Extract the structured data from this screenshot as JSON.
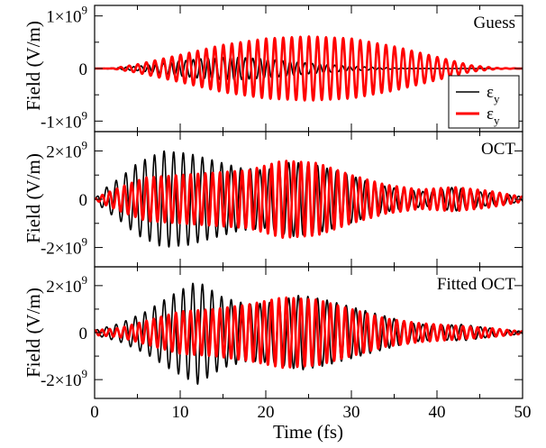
{
  "chart_data": {
    "type": "line",
    "xlabel": "Time (fs)",
    "ylabel": "Field (V/m)",
    "xlim": [
      0,
      50
    ],
    "x_ticks": [
      "0",
      "10",
      "20",
      "30",
      "40",
      "50"
    ],
    "legend": {
      "placement": "right",
      "entries": [
        {
          "label": "ε",
          "sub": "y",
          "color": "#000000"
        },
        {
          "label": "ε",
          "sub": "y",
          "color": "#ff0000"
        }
      ]
    },
    "panels": [
      {
        "title": "Guess",
        "ylim": [
          -1200000000.0,
          1200000000.0
        ],
        "y_ticks": [
          {
            "value": 1000000000.0,
            "mant": "1×10",
            "exp": "9"
          },
          {
            "value": 0,
            "mant": "0",
            "exp": ""
          },
          {
            "value": -1000000000.0,
            "mant": "-1×10",
            "exp": "9"
          }
        ],
        "series": [
          {
            "color": "#000000",
            "carrier_period_fs": 0.87,
            "envelope": [
              [
                0,
                0
              ],
              [
                2,
                10000000.0
              ],
              [
                5,
                40000000.0
              ],
              [
                8,
                100000000.0
              ],
              [
                12,
                180000000.0
              ],
              [
                16,
                220000000.0
              ],
              [
                20,
                180000000.0
              ],
              [
                25,
                100000000.0
              ],
              [
                30,
                40000000.0
              ],
              [
                35,
                10000000.0
              ],
              [
                40,
                0
              ],
              [
                50,
                0
              ]
            ]
          },
          {
            "color": "#ff0000",
            "carrier_period_fs": 1.0,
            "envelope": [
              [
                0,
                0
              ],
              [
                2,
                0
              ],
              [
                5,
                80000000.0
              ],
              [
                10,
                260000000.0
              ],
              [
                15,
                450000000.0
              ],
              [
                20,
                570000000.0
              ],
              [
                25,
                610000000.0
              ],
              [
                30,
                570000000.0
              ],
              [
                35,
                420000000.0
              ],
              [
                40,
                220000000.0
              ],
              [
                44,
                60000000.0
              ],
              [
                47,
                10000000.0
              ],
              [
                50,
                0
              ]
            ]
          }
        ]
      },
      {
        "title": "OCT",
        "ylim": [
          -2800000000.0,
          2800000000.0
        ],
        "y_ticks": [
          {
            "value": 2000000000.0,
            "mant": "2×10",
            "exp": "9"
          },
          {
            "value": 0,
            "mant": "0",
            "exp": ""
          },
          {
            "value": -2000000000.0,
            "mant": "-2×10",
            "exp": "9"
          }
        ],
        "series": [
          {
            "color": "#000000",
            "carrier_period_fs": 1.12,
            "envelope": [
              [
                0,
                0
              ],
              [
                1,
                400000000.0
              ],
              [
                3,
                900000000.0
              ],
              [
                5,
                1500000000.0
              ],
              [
                8,
                2000000000.0
              ],
              [
                11,
                1900000000.0
              ],
              [
                14,
                1600000000.0
              ],
              [
                17,
                1300000000.0
              ],
              [
                20,
                1200000000.0
              ],
              [
                23,
                1550000000.0
              ],
              [
                26,
                1400000000.0
              ],
              [
                29,
                1100000000.0
              ],
              [
                33,
                600000000.0
              ],
              [
                36,
                400000000.0
              ],
              [
                39,
                300000000.0
              ],
              [
                42,
                500000000.0
              ],
              [
                45,
                300000000.0
              ],
              [
                48,
                200000000.0
              ],
              [
                50,
                100000000.0
              ]
            ]
          },
          {
            "color": "#ff0000",
            "carrier_period_fs": 0.86,
            "envelope": [
              [
                0,
                0
              ],
              [
                1,
                200000000.0
              ],
              [
                3,
                500000000.0
              ],
              [
                6,
                900000000.0
              ],
              [
                10,
                1000000000.0
              ],
              [
                14,
                1100000000.0
              ],
              [
                18,
                1200000000.0
              ],
              [
                22,
                1600000000.0
              ],
              [
                26,
                1500000000.0
              ],
              [
                30,
                1000000000.0
              ],
              [
                34,
                600000000.0
              ],
              [
                38,
                400000000.0
              ],
              [
                42,
                500000000.0
              ],
              [
                46,
                350000000.0
              ],
              [
                50,
                100000000.0
              ]
            ]
          }
        ]
      },
      {
        "title": "Fitted OCT",
        "ylim": [
          -2800000000.0,
          2800000000.0
        ],
        "y_ticks": [
          {
            "value": 2000000000.0,
            "mant": "2×10",
            "exp": "9"
          },
          {
            "value": 0,
            "mant": "0",
            "exp": ""
          },
          {
            "value": -2000000000.0,
            "mant": "-2×10",
            "exp": "9"
          }
        ],
        "series": [
          {
            "color": "#000000",
            "carrier_period_fs": 1.12,
            "envelope": [
              [
                0,
                100000000.0
              ],
              [
                3,
                400000000.0
              ],
              [
                6,
                900000000.0
              ],
              [
                9,
                1600000000.0
              ],
              [
                12,
                2200000000.0
              ],
              [
                15,
                1500000000.0
              ],
              [
                18,
                1200000000.0
              ],
              [
                21,
                1300000000.0
              ],
              [
                24,
                1600000000.0
              ],
              [
                27,
                1400000000.0
              ],
              [
                30,
                1100000000.0
              ],
              [
                34,
                700000000.0
              ],
              [
                37,
                400000000.0
              ],
              [
                40,
                300000000.0
              ],
              [
                43,
                350000000.0
              ],
              [
                46,
                200000000.0
              ],
              [
                50,
                50000000.0
              ]
            ]
          },
          {
            "color": "#ff0000",
            "carrier_period_fs": 0.86,
            "envelope": [
              [
                0,
                100000000.0
              ],
              [
                3,
                200000000.0
              ],
              [
                6,
                500000000.0
              ],
              [
                10,
                900000000.0
              ],
              [
                14,
                1000000000.0
              ],
              [
                18,
                1200000000.0
              ],
              [
                22,
                1500000000.0
              ],
              [
                26,
                1400000000.0
              ],
              [
                30,
                1000000000.0
              ],
              [
                34,
                600000000.0
              ],
              [
                38,
                400000000.0
              ],
              [
                42,
                300000000.0
              ],
              [
                46,
                200000000.0
              ],
              [
                50,
                50000000.0
              ]
            ]
          }
        ]
      }
    ]
  }
}
